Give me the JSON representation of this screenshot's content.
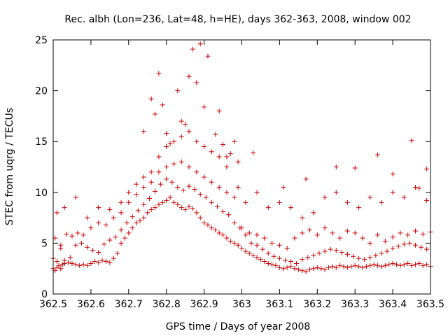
{
  "chart_data": {
    "type": "scatter",
    "title": "Rec. albh (Lon=236, Lat=48, h=HE), days 362-363, 2008, window 002",
    "xlabel": "GPS time / Days of year 2008",
    "ylabel": "STEC from uqrg / TECUs",
    "xlim": [
      362.5,
      363.5
    ],
    "ylim": [
      0,
      25
    ],
    "x_ticks": [
      "362.5",
      "362.6",
      "362.7",
      "362.8",
      "362.9",
      "363",
      "363.1",
      "363.2",
      "363.3",
      "363.4",
      "363.5"
    ],
    "y_ticks": [
      "0",
      "5",
      "10",
      "15",
      "20",
      "25"
    ],
    "grid": false,
    "marker": "plus",
    "marker_color": "#cc0000",
    "series": [
      {
        "x": [
          362.5,
          362.505,
          362.51,
          362.515,
          362.52,
          362.525,
          362.53,
          362.54,
          362.55,
          362.56,
          362.57,
          362.58,
          362.59,
          362.6,
          362.61,
          362.62,
          362.63,
          362.64,
          362.65,
          362.66,
          362.67,
          362.68,
          362.69,
          362.7,
          362.71,
          362.72,
          362.73,
          362.74,
          362.75,
          362.76,
          362.77,
          362.78,
          362.79,
          362.8,
          362.81,
          362.82,
          362.83,
          362.84,
          362.85,
          362.86,
          362.87,
          362.88,
          362.89,
          362.9,
          362.91,
          362.92,
          362.93,
          362.94,
          362.95,
          362.96,
          362.97,
          362.98,
          362.99,
          363.0,
          363.01,
          363.02,
          363.03,
          363.04,
          363.05,
          363.06,
          363.07,
          363.08,
          363.09,
          363.1,
          363.11,
          363.12,
          363.13,
          363.14,
          363.15,
          363.16,
          363.17,
          363.18,
          363.19,
          363.2,
          363.21,
          363.22,
          363.23,
          363.24,
          363.25,
          363.26,
          363.27,
          363.28,
          363.29,
          363.3,
          363.31,
          363.32,
          363.33,
          363.34,
          363.35,
          363.36,
          363.37,
          363.38,
          363.39,
          363.4,
          363.41,
          363.42,
          363.43,
          363.44,
          363.45,
          363.46,
          363.47,
          363.48,
          363.49,
          363.5,
          362.5,
          362.51,
          362.52,
          362.53,
          362.545,
          362.56,
          362.575,
          362.59,
          362.605,
          362.62,
          362.635,
          362.65,
          362.665,
          362.68,
          362.695,
          362.71,
          362.725,
          362.74,
          362.755,
          362.77,
          362.785,
          362.8,
          362.815,
          362.83,
          362.845,
          362.86,
          362.875,
          362.89,
          362.905,
          362.92,
          362.935,
          362.95,
          362.965,
          362.98,
          362.995,
          363.01,
          363.025,
          363.04,
          363.055,
          363.07,
          363.085,
          363.1,
          363.115,
          363.13,
          363.145,
          363.16,
          363.175,
          363.19,
          363.205,
          363.22,
          363.235,
          363.25,
          363.265,
          363.28,
          363.295,
          363.31,
          363.325,
          363.34,
          363.355,
          363.37,
          363.385,
          363.4,
          363.415,
          363.43,
          363.445,
          363.46,
          363.475,
          363.49,
          362.505,
          362.52,
          362.535,
          362.55,
          362.565,
          362.58,
          362.6,
          362.62,
          362.64,
          362.66,
          362.68,
          362.7,
          362.72,
          362.74,
          362.76,
          362.78,
          362.8,
          362.82,
          362.84,
          362.86,
          362.88,
          362.9,
          362.92,
          362.94,
          362.96,
          362.98,
          363.0,
          363.02,
          363.04,
          363.06,
          363.08,
          363.1,
          363.12,
          363.14,
          363.16,
          363.18,
          363.2,
          363.22,
          363.24,
          363.26,
          363.28,
          363.3,
          363.32,
          363.34,
          363.36,
          363.38,
          363.4,
          363.42,
          363.44,
          363.46,
          363.48,
          363.5,
          362.51,
          362.53,
          362.56,
          362.59,
          362.62,
          362.65,
          362.68,
          362.7,
          362.72,
          362.74,
          362.76,
          362.78,
          362.8,
          362.82,
          362.84,
          362.86,
          362.88,
          362.9,
          362.92,
          362.94,
          362.96,
          362.99,
          363.01,
          363.04,
          363.07,
          363.1,
          363.13,
          363.16,
          363.19,
          363.22,
          363.25,
          363.28,
          363.31,
          363.34,
          363.37,
          363.4,
          363.43,
          363.46,
          363.49,
          362.74,
          362.76,
          362.77,
          362.78,
          362.79,
          362.8,
          362.81,
          362.83,
          362.84,
          362.85,
          362.86,
          362.87,
          362.88,
          362.89,
          362.9,
          362.91,
          362.93,
          362.94,
          362.95,
          362.96,
          362.97,
          362.98,
          362.99,
          363.03,
          363.11,
          363.17,
          363.25,
          363.3,
          363.36,
          363.4,
          363.45,
          363.47,
          363.49
        ],
        "y": [
          2.5,
          2.3,
          2.6,
          2.8,
          2.5,
          2.9,
          3.0,
          3.1,
          3.0,
          2.9,
          2.8,
          2.9,
          2.8,
          3.0,
          3.2,
          3.1,
          3.3,
          3.2,
          3.1,
          3.5,
          4.0,
          5.0,
          5.5,
          6.0,
          6.5,
          7.0,
          7.2,
          7.5,
          8.0,
          8.3,
          8.5,
          8.8,
          9.0,
          9.2,
          9.5,
          9.0,
          8.8,
          8.5,
          8.3,
          8.6,
          8.4,
          8.0,
          7.5,
          7.0,
          6.8,
          6.5,
          6.3,
          6.0,
          5.8,
          5.5,
          5.2,
          5.0,
          4.8,
          4.5,
          4.2,
          4.0,
          3.8,
          3.6,
          3.4,
          3.2,
          3.0,
          2.9,
          2.8,
          2.6,
          2.5,
          2.6,
          2.7,
          2.5,
          2.4,
          2.3,
          2.2,
          2.4,
          2.5,
          2.6,
          2.5,
          2.4,
          2.6,
          2.7,
          2.6,
          2.8,
          2.7,
          2.6,
          2.7,
          2.8,
          2.7,
          2.6,
          2.7,
          2.8,
          2.9,
          2.8,
          2.7,
          2.8,
          2.9,
          3.0,
          2.9,
          2.8,
          2.9,
          3.0,
          2.8,
          2.9,
          3.0,
          2.8,
          2.9,
          2.7,
          3.5,
          3.2,
          4.5,
          3.3,
          3.6,
          4.8,
          5.0,
          4.6,
          4.3,
          4.1,
          4.9,
          5.3,
          5.6,
          6.3,
          7.0,
          7.6,
          8.2,
          8.8,
          9.4,
          10.1,
          10.8,
          11.3,
          11.0,
          10.5,
          10.2,
          10.6,
          10.3,
          9.8,
          9.5,
          9.0,
          8.6,
          8.1,
          7.8,
          7.0,
          6.5,
          5.8,
          5.0,
          4.8,
          4.4,
          4.0,
          3.7,
          3.5,
          3.3,
          3.2,
          3.0,
          3.4,
          3.6,
          3.8,
          4.0,
          4.2,
          4.4,
          4.3,
          4.1,
          3.9,
          3.7,
          3.5,
          3.4,
          3.6,
          3.8,
          4.0,
          4.2,
          4.5,
          4.7,
          4.9,
          5.0,
          4.8,
          4.6,
          4.4,
          5.5,
          4.8,
          5.9,
          5.7,
          6.0,
          5.8,
          6.5,
          7.0,
          6.8,
          7.5,
          8.0,
          9.0,
          9.8,
          10.5,
          11.0,
          12.0,
          12.5,
          12.8,
          13.0,
          12.5,
          12.0,
          11.5,
          11.0,
          10.5,
          10.0,
          9.5,
          6.5,
          6.0,
          5.8,
          5.5,
          5.0,
          4.8,
          4.5,
          5.5,
          6.0,
          6.3,
          5.8,
          6.5,
          6.0,
          5.5,
          6.2,
          6.0,
          5.5,
          5.0,
          5.8,
          5.2,
          5.6,
          6.0,
          5.8,
          6.2,
          5.9,
          6.1,
          8.0,
          8.5,
          9.5,
          7.5,
          8.5,
          8.3,
          9.0,
          10.0,
          10.8,
          11.5,
          12.0,
          13.5,
          14.5,
          15.0,
          15.5,
          16.0,
          15.0,
          14.5,
          14.0,
          13.5,
          12.5,
          10.5,
          9.0,
          10.0,
          8.5,
          9.0,
          8.5,
          7.5,
          8.0,
          9.5,
          10.0,
          9.0,
          8.5,
          9.5,
          9.0,
          10.0,
          9.5,
          10.5,
          9.2,
          16.0,
          19.2,
          17.7,
          21.7,
          18.6,
          15.8,
          14.8,
          20.0,
          17.0,
          16.7,
          21.4,
          24.1,
          20.8,
          24.6,
          18.4,
          23.4,
          15.7,
          18.0,
          14.7,
          13.5,
          13.8,
          15.0,
          13.0,
          13.9,
          10.5,
          11.3,
          12.5,
          12.4,
          13.7,
          11.8,
          15.1,
          10.4,
          12.3
        ]
      }
    ]
  }
}
